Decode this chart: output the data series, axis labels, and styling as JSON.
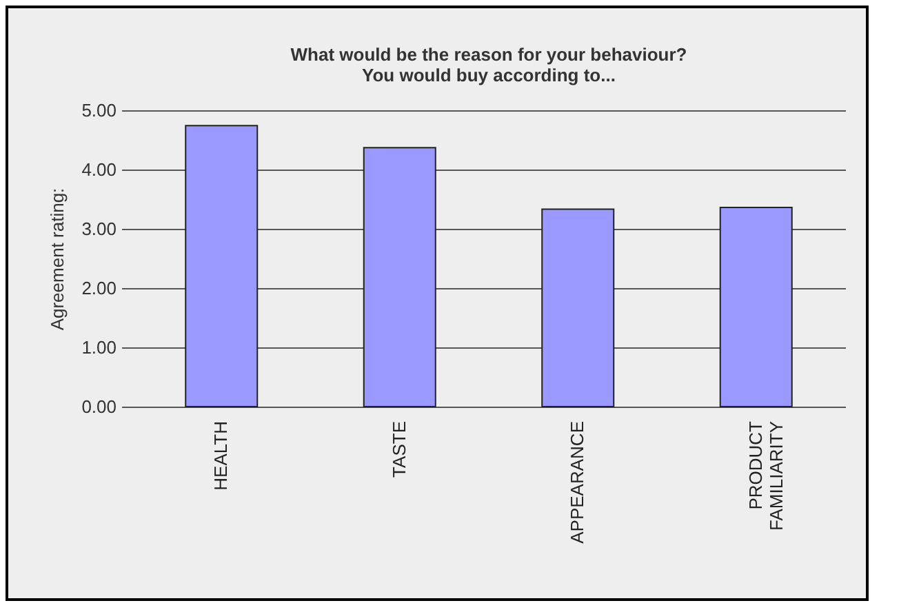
{
  "chart_data": {
    "type": "bar",
    "title": "What would be the reason for your behaviour?",
    "subtitle": "You would buy according to...",
    "ylabel": "Agreement rating:",
    "categories": [
      "HEALTH",
      "TASTE",
      "APPEARANCE",
      "PRODUCT FAMILIARITY"
    ],
    "values": [
      4.74,
      4.37,
      3.33,
      3.36
    ],
    "color": "#9999ff",
    "ylim": [
      0,
      5
    ],
    "yticks": [
      {
        "value": 0,
        "label": "0.00"
      },
      {
        "value": 1,
        "label": "1.00"
      },
      {
        "value": 2,
        "label": "2.00"
      },
      {
        "value": 3,
        "label": "3.00"
      },
      {
        "value": 4,
        "label": "4.00"
      },
      {
        "value": 5,
        "label": "5.00"
      }
    ],
    "grid": "y"
  }
}
